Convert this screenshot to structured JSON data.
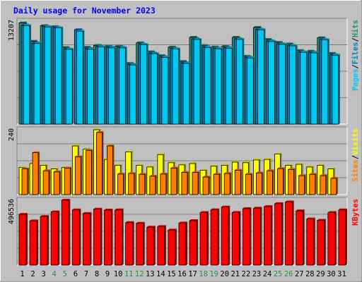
{
  "chart_data": {
    "type": "bar",
    "title": "Daily usage for November 2023",
    "categories": [
      "1",
      "2",
      "3",
      "4",
      "5",
      "6",
      "7",
      "8",
      "9",
      "10",
      "11",
      "12",
      "13",
      "14",
      "15",
      "16",
      "17",
      "18",
      "19",
      "20",
      "21",
      "22",
      "23",
      "24",
      "25",
      "26",
      "27",
      "28",
      "29",
      "30",
      "31"
    ],
    "weekend_days": [
      "4",
      "5",
      "11",
      "12",
      "18",
      "19",
      "25",
      "26"
    ],
    "panels": [
      {
        "id": "hits-files-pages",
        "max_label": "13207",
        "ymax": 13207,
        "legend": [
          "Pages",
          "/",
          "Files",
          "/",
          "Hits"
        ],
        "series": [
          {
            "name": "Hits",
            "color": "#2d8f6f",
            "values": [
              12980,
              10620,
              12630,
              12500,
              9830,
              null,
              9850,
              10100,
              10000,
              10000,
              7790,
              10420,
              9270,
              8770,
              9870,
              8030,
              11130,
              10080,
              9880,
              9960,
              11130,
              8700,
              12400,
              10860,
              10480,
              10280,
              9430,
              9350,
              11070,
              9070,
              null
            ]
          },
          {
            "name": "Files",
            "color": "#0080c0",
            "values": [
              12700,
              10400,
              12520,
              12380,
              9650,
              12100,
              9680,
              9950,
              9860,
              9850,
              7640,
              10250,
              9100,
              8600,
              9700,
              7850,
              10930,
              9900,
              9720,
              9800,
              10940,
              8560,
              12170,
              10660,
              10300,
              10100,
              9270,
              9200,
              10880,
              8900,
              null
            ]
          },
          {
            "name": "Pages",
            "color": "#00c8f0",
            "values": [
              12630,
              10340,
              12460,
              12340,
              9600,
              11910,
              9600,
              9890,
              9780,
              9780,
              7580,
              10200,
              9040,
              8540,
              9640,
              7790,
              10860,
              9820,
              9660,
              9740,
              10870,
              8480,
              12100,
              10600,
              10240,
              10040,
              9210,
              9140,
              10810,
              8840,
              null
            ]
          }
        ]
      },
      {
        "id": "visits-sites",
        "max_label": "240",
        "ymax": 240,
        "legend": [
          "Sites",
          "/",
          "Visits"
        ],
        "series": [
          {
            "name": "Visits",
            "color": "#ffff00",
            "values": [
              100,
              115,
              108,
              95,
              100,
              180,
              168,
              240,
              130,
              108,
              158,
              108,
              102,
              148,
              118,
              110,
              115,
              90,
              105,
              108,
              120,
              118,
              128,
              130,
              150,
              108,
              112,
              102,
              108,
              95,
              null
            ]
          },
          {
            "name": "Sites",
            "color": "#ff8000",
            "values": [
              95,
              155,
              88,
              84,
              98,
              140,
              163,
              230,
              180,
              76,
              78,
              75,
              68,
              76,
              98,
              82,
              82,
              65,
              75,
              78,
              90,
              75,
              80,
              88,
              96,
              93,
              70,
              75,
              70,
              60,
              null
            ]
          }
        ]
      },
      {
        "id": "kbytes",
        "max_label": "496536",
        "ymax": 496536,
        "legend": [
          "KBytes"
        ],
        "series": [
          {
            "name": "KBytes",
            "color": "#ff0000",
            "values": [
              388000,
              338000,
              372000,
              407000,
              496536,
              422000,
              395000,
              428000,
              421000,
              422000,
              325000,
              320000,
              290000,
              295000,
              268000,
              322000,
              340000,
              402000,
              423000,
              444000,
              403000,
              432000,
              435000,
              447000,
              470000,
              483000,
              415000,
              353000,
              343000,
              402000,
              422000
            ]
          }
        ]
      }
    ]
  }
}
